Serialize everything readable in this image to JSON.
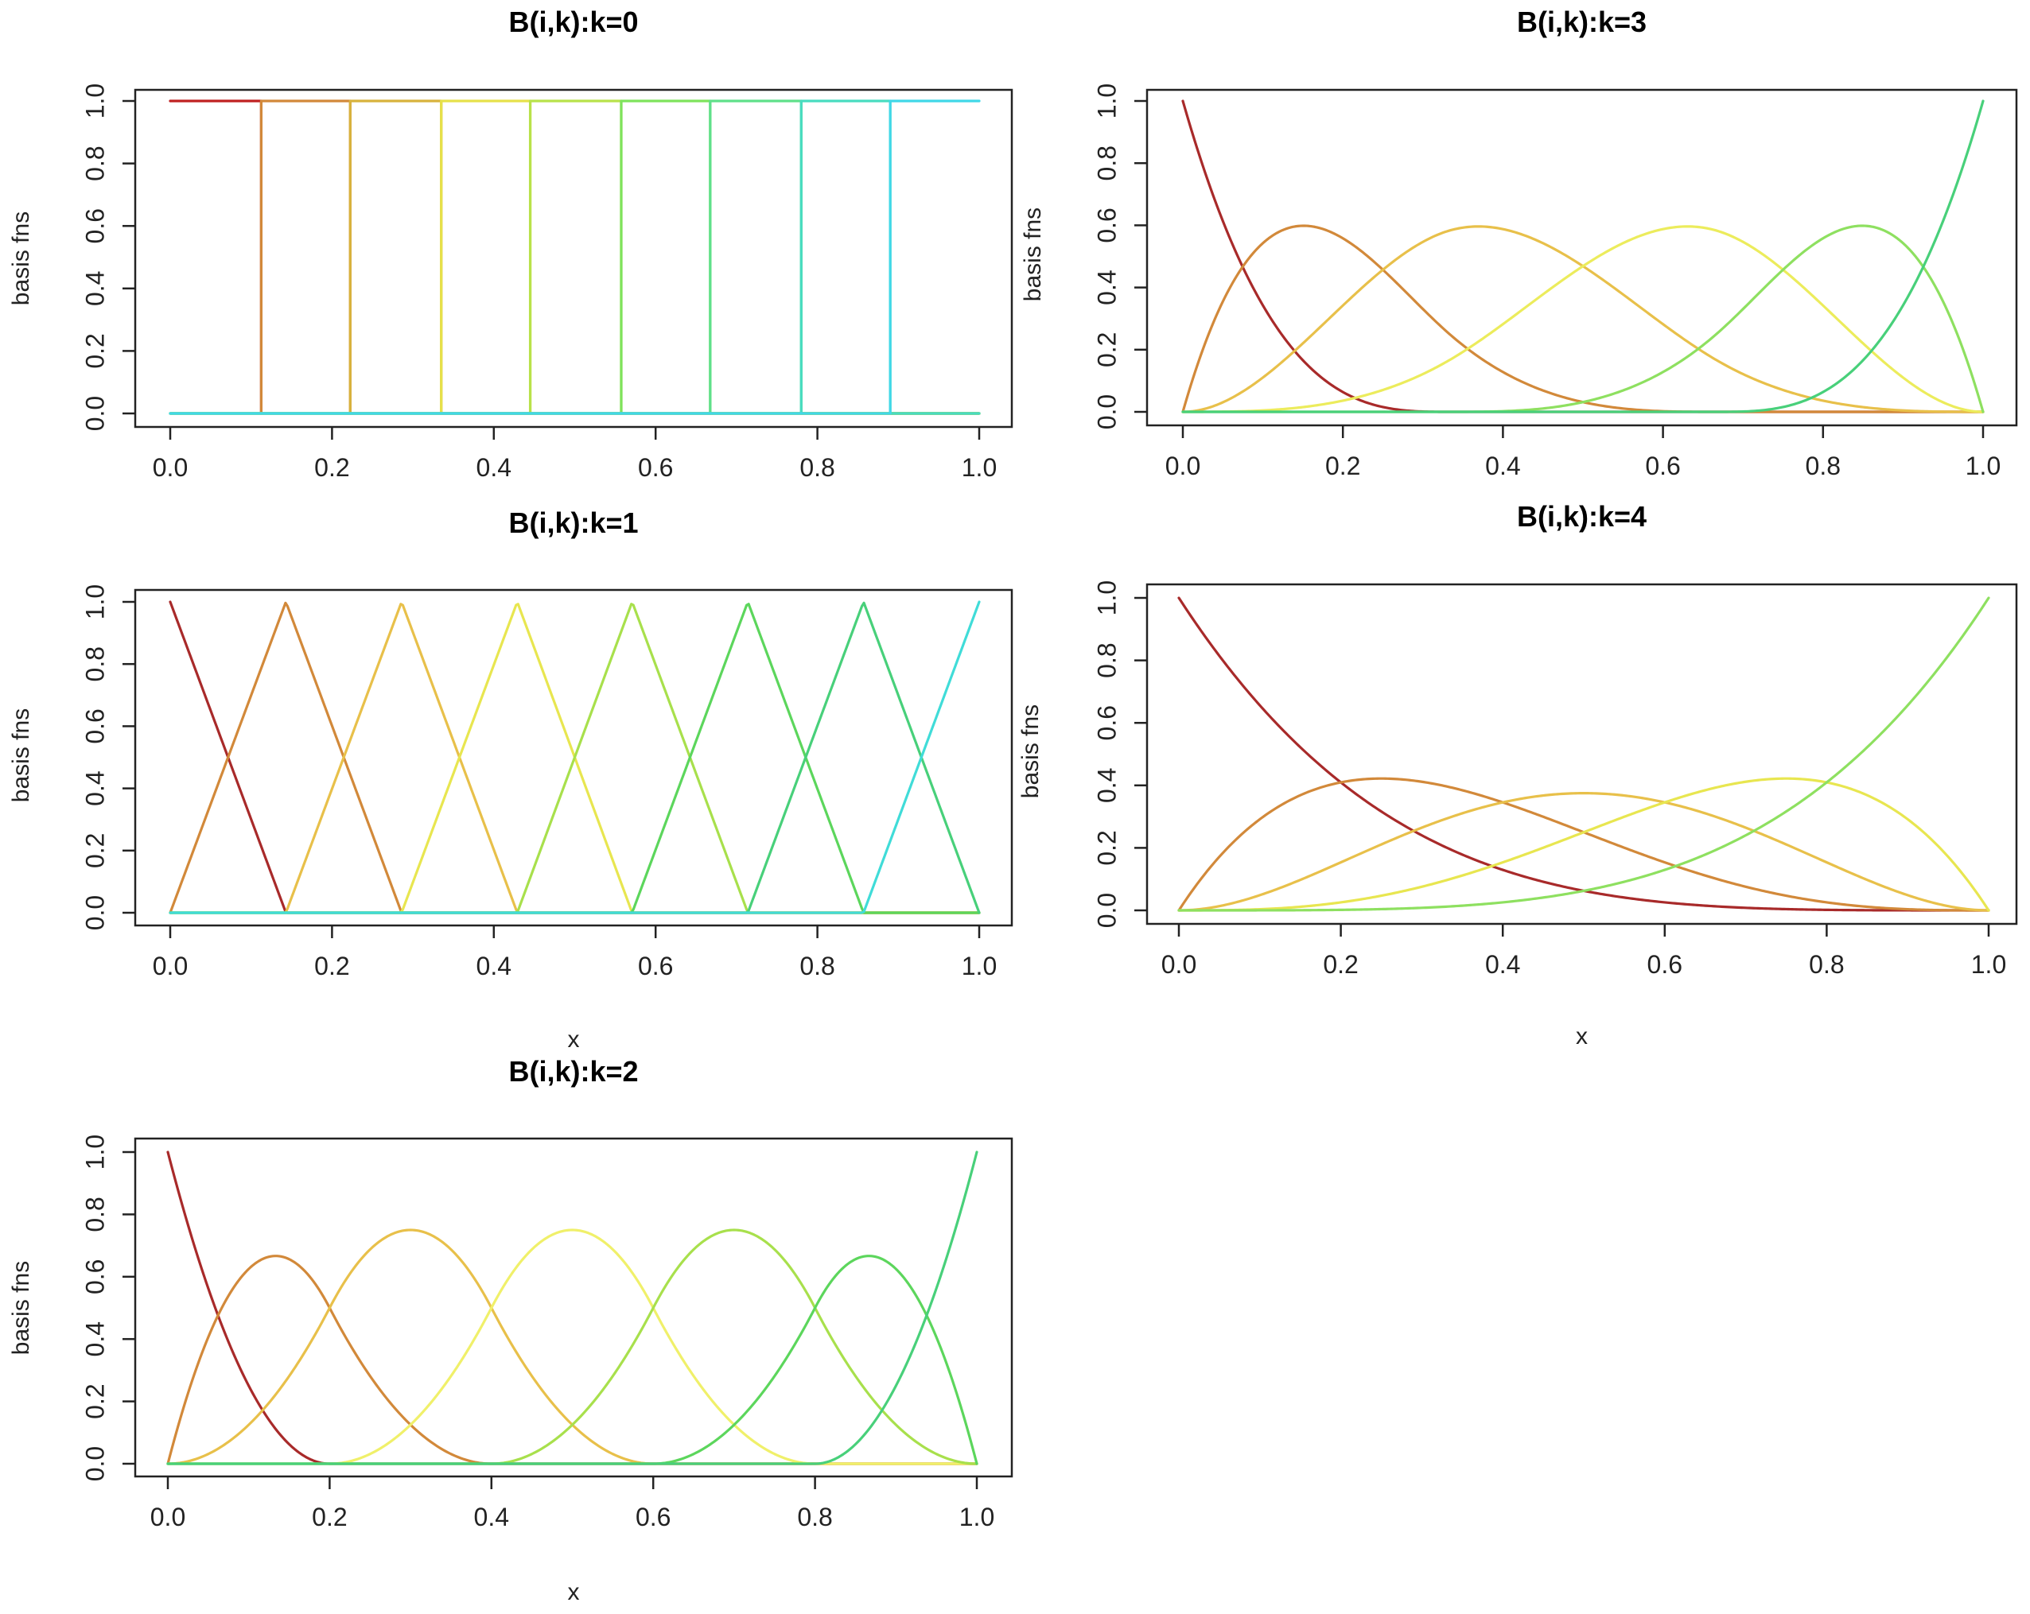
{
  "chart_data": [
    {
      "type": "line",
      "title": "B(i,k):k=0",
      "degree": 0,
      "n_basis": 9,
      "knots_interior": [
        0.111,
        0.222,
        0.333,
        0.444,
        0.556,
        0.667,
        0.778,
        0.889
      ],
      "xlabel": "",
      "ylabel": "basis fns",
      "xlim": [
        0,
        1
      ],
      "ylim": [
        0,
        1
      ],
      "xticks": [
        "0.0",
        "0.2",
        "0.4",
        "0.6",
        "0.8",
        "1.0"
      ],
      "yticks": [
        "0.0",
        "0.2",
        "0.4",
        "0.6",
        "0.8",
        "1.0"
      ],
      "colors": [
        "#c02020",
        "#d2893a",
        "#d8b23c",
        "#e6e14a",
        "#b8e24a",
        "#7ee35c",
        "#5fe08a",
        "#48dcc0",
        "#40d8e8"
      ]
    },
    {
      "type": "line",
      "title": "B(i,k):k=1",
      "degree": 1,
      "n_basis": 8,
      "knots_interior": [
        0.143,
        0.286,
        0.429,
        0.571,
        0.714,
        0.857
      ],
      "xlabel": "x",
      "ylabel": "basis fns",
      "xlim": [
        0,
        1
      ],
      "ylim": [
        0,
        1
      ],
      "xticks": [
        "0.0",
        "0.2",
        "0.4",
        "0.6",
        "0.8",
        "1.0"
      ],
      "yticks": [
        "0.0",
        "0.2",
        "0.4",
        "0.6",
        "0.8",
        "1.0"
      ],
      "colors": [
        "#a82a2a",
        "#d2893a",
        "#e8c04a",
        "#e8e650",
        "#a8e04c",
        "#5cd65c",
        "#48d07a",
        "#40dcd8"
      ]
    },
    {
      "type": "line",
      "title": "B(i,k):k=2",
      "degree": 2,
      "n_basis": 7,
      "knots_interior": [
        0.2,
        0.4,
        0.6,
        0.8
      ],
      "xlabel": "x",
      "ylabel": "basis fns",
      "xlim": [
        0,
        1
      ],
      "ylim": [
        0,
        1
      ],
      "xticks": [
        "0.0",
        "0.2",
        "0.4",
        "0.6",
        "0.8",
        "1.0"
      ],
      "yticks": [
        "0.0",
        "0.2",
        "0.4",
        "0.6",
        "0.8",
        "1.0"
      ],
      "colors": [
        "#a82a2a",
        "#d2893a",
        "#e8c04a",
        "#f0f06a",
        "#a8e04c",
        "#5cd65c",
        "#48d07a"
      ]
    },
    {
      "type": "line",
      "title": "B(i,k):k=3",
      "degree": 3,
      "n_basis": 6,
      "knots_interior": [
        0.333,
        0.667
      ],
      "xlabel": "",
      "ylabel": "basis fns",
      "xlim": [
        0,
        1
      ],
      "ylim": [
        0,
        1
      ],
      "xticks": [
        "0.0",
        "0.2",
        "0.4",
        "0.6",
        "0.8",
        "1.0"
      ],
      "yticks": [
        "0.0",
        "0.2",
        "0.4",
        "0.6",
        "0.8",
        "1.0"
      ],
      "colors": [
        "#a82a2a",
        "#d2893a",
        "#e8c04a",
        "#ecec5c",
        "#8ee060",
        "#48d07a"
      ]
    },
    {
      "type": "line",
      "title": "B(i,k):k=4",
      "degree": 4,
      "n_basis": 5,
      "knots_interior": [],
      "xlabel": "x",
      "ylabel": "basis fns",
      "xlim": [
        0,
        1
      ],
      "ylim": [
        0,
        1
      ],
      "xticks": [
        "0.0",
        "0.2",
        "0.4",
        "0.6",
        "0.8",
        "1.0"
      ],
      "yticks": [
        "0.0",
        "0.2",
        "0.4",
        "0.6",
        "0.8",
        "1.0"
      ],
      "colors": [
        "#a82a2a",
        "#d2893a",
        "#e8c04a",
        "#e8e650",
        "#8ee060"
      ]
    }
  ]
}
